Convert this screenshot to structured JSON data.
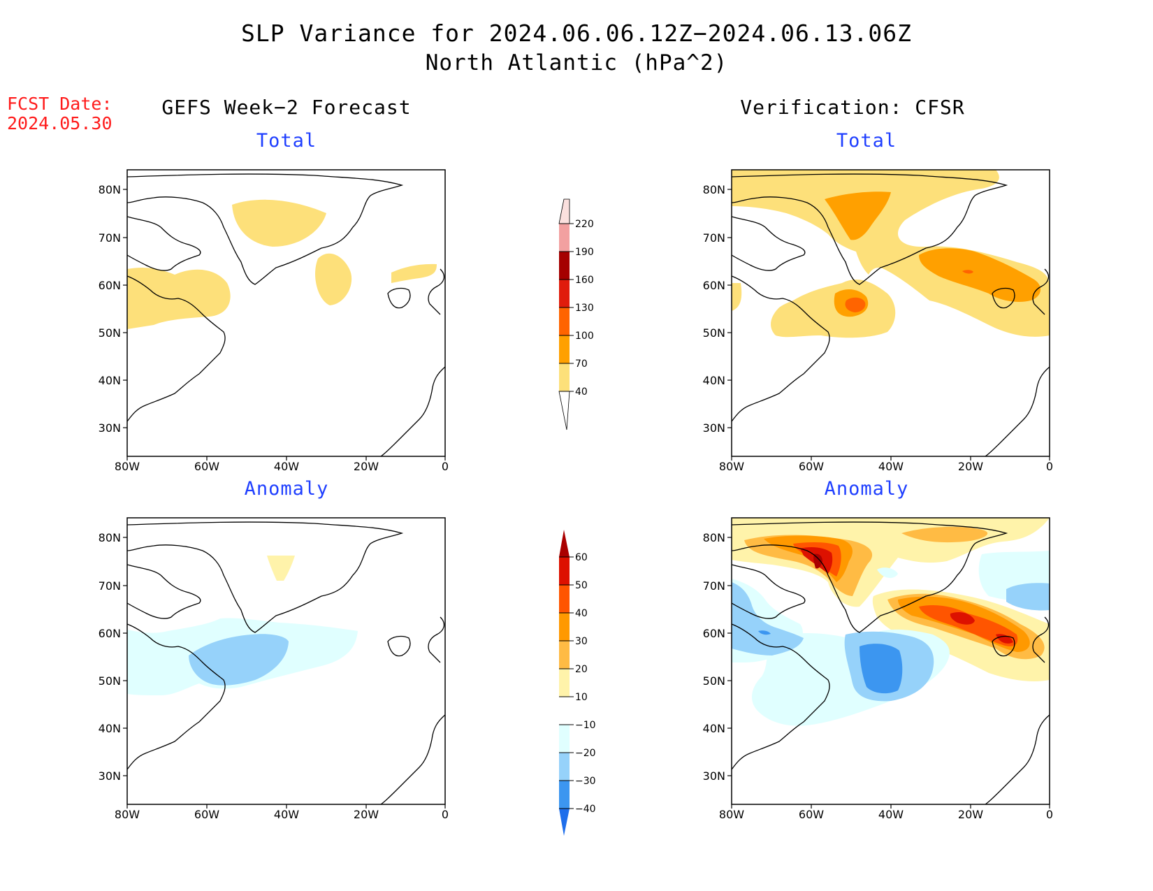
{
  "title": {
    "line1": "SLP Variance for 2024.06.06.12Z−2024.06.13.06Z",
    "line2": "North Atlantic (hPa^2)"
  },
  "forecast_date": {
    "label": "FCST Date:",
    "value": "2024.05.30"
  },
  "columns": {
    "left": "GEFS Week−2 Forecast",
    "right": "Verification: CFSR"
  },
  "panels": {
    "top_left": "Total",
    "top_right": "Total",
    "bottom_left": "Anomaly",
    "bottom_right": "Anomaly"
  },
  "axes": {
    "lat_labels": [
      "80N",
      "70N",
      "60N",
      "50N",
      "40N",
      "30N"
    ],
    "lon_labels": [
      "80W",
      "60W",
      "40W",
      "20W",
      "0"
    ]
  },
  "colorbars": {
    "total": {
      "labels": [
        "220",
        "190",
        "160",
        "130",
        "100",
        "70",
        "40"
      ],
      "colors": [
        "#fbe0de",
        "#f2a0a0",
        "#a50000",
        "#e01c0c",
        "#ff6400",
        "#ffa000",
        "#fde07a"
      ]
    },
    "anomaly": {
      "labels": [
        "60",
        "50",
        "40",
        "30",
        "20",
        "10",
        "−10",
        "−20",
        "−30",
        "−40"
      ],
      "colors": [
        "#aa0000",
        "#dd1100",
        "#ff5500",
        "#ff9900",
        "#ffbb44",
        "#fff3aa",
        "#ffffff",
        "#e0ffff",
        "#96d2fa",
        "#3c96f0",
        "#1e6eeb"
      ]
    }
  }
}
